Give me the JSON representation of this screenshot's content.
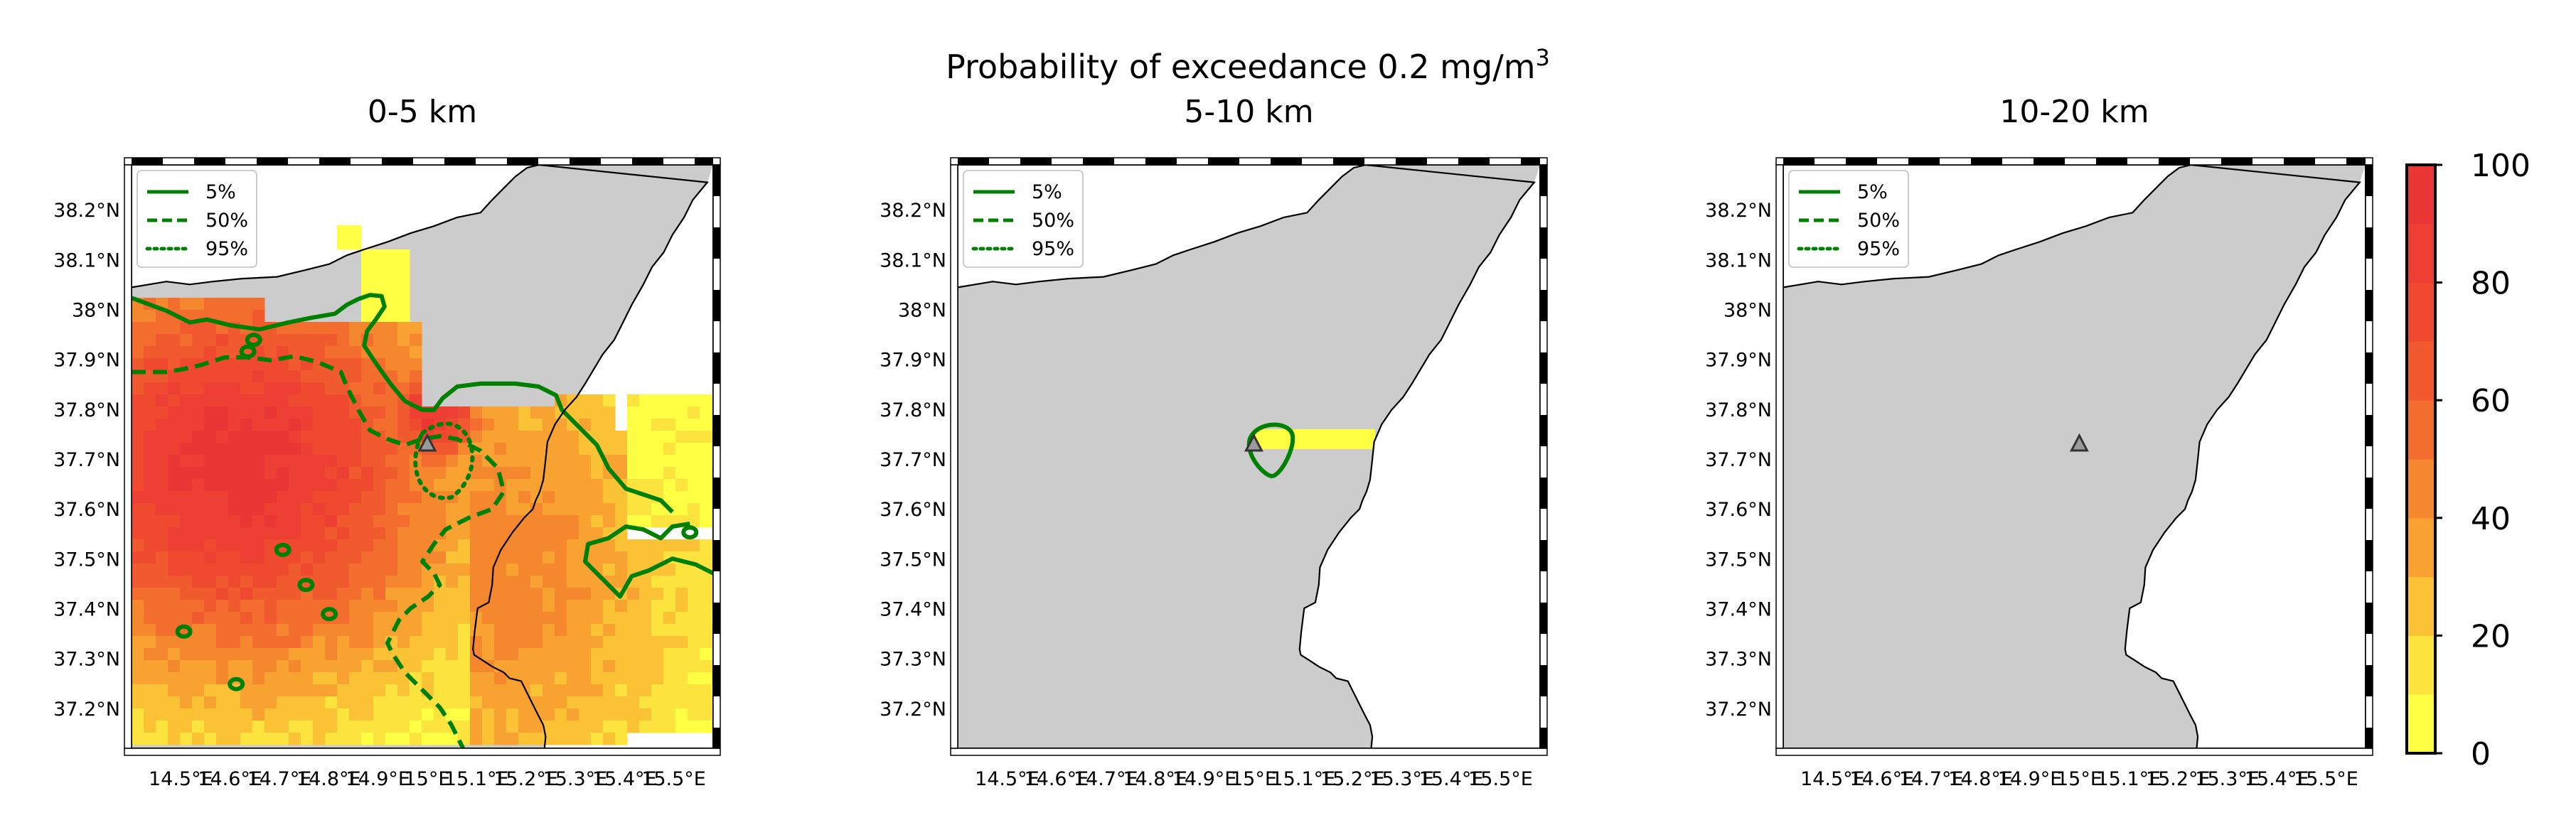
{
  "figure": {
    "suptitle_prefix": "Probability of exceedance 0.2 mg/m",
    "suptitle_sup": "3"
  },
  "colors": {
    "land": "#cccccc",
    "sea": "#ffffff",
    "contour": "#008000",
    "colormap": [
      "#ffff44",
      "#fde33d",
      "#fbc236",
      "#f8a232",
      "#f5882f",
      "#f36e2e",
      "#f1592f",
      "#ef4a30",
      "#ed3f33",
      "#eb3636"
    ]
  },
  "chart_data": [
    {
      "type": "heatmap",
      "title": "0-5 km",
      "xlim": [
        14.4,
        15.58
      ],
      "ylim": [
        37.12,
        38.29
      ],
      "xticks": [
        14.5,
        14.6,
        14.7,
        14.8,
        14.9,
        15.0,
        15.1,
        15.2,
        15.3,
        15.4,
        15.5
      ],
      "xtick_labels": [
        "14.5°E",
        "14.6°E",
        "14.7°E",
        "14.8°E",
        "14.9°E",
        "15°E",
        "15.1°E",
        "15.2°E",
        "15.3°E",
        "15.4°E",
        "15.5°E"
      ],
      "yticks": [
        37.2,
        37.3,
        37.4,
        37.5,
        37.6,
        37.7,
        37.8,
        37.9,
        38.0,
        38.1,
        38.2
      ],
      "ytick_labels": [
        "37.2°N",
        "37.3°N",
        "37.4°N",
        "37.5°N",
        "37.6°N",
        "37.7°N",
        "37.8°N",
        "37.9°N",
        "38°N",
        "38.1°N",
        "38.2°N"
      ],
      "vent": {
        "lon": 15.0,
        "lat": 37.73
      },
      "legend": {
        "position": "top-left",
        "entries": [
          "5%",
          "50%",
          "95%"
        ]
      },
      "probability_field_regions": [
        {
          "lon_range": [
            14.4,
            15.58
          ],
          "lat_range": [
            37.15,
            37.98
          ],
          "probability": "2-95"
        }
      ]
    },
    {
      "type": "heatmap",
      "title": "5-10 km",
      "xlim": [
        14.4,
        15.58
      ],
      "ylim": [
        37.12,
        38.29
      ],
      "xticks": [
        14.5,
        14.6,
        14.7,
        14.8,
        14.9,
        15.0,
        15.1,
        15.2,
        15.3,
        15.4,
        15.5
      ],
      "xtick_labels": [
        "14.5°E",
        "14.6°E",
        "14.7°E",
        "14.8°E",
        "14.9°E",
        "15°E",
        "15.1°E",
        "15.2°E",
        "15.3°E",
        "15.4°E",
        "15.5°E"
      ],
      "yticks": [
        37.2,
        37.3,
        37.4,
        37.5,
        37.6,
        37.7,
        37.8,
        37.9,
        38.0,
        38.1,
        38.2
      ],
      "ytick_labels": [
        "37.2°N",
        "37.3°N",
        "37.4°N",
        "37.5°N",
        "37.6°N",
        "37.7°N",
        "37.8°N",
        "37.9°N",
        "38°N",
        "38.1°N",
        "38.2°N"
      ],
      "vent": {
        "lon": 15.0,
        "lat": 37.73
      },
      "legend": {
        "position": "top-left",
        "entries": [
          "5%",
          "50%",
          "95%"
        ]
      },
      "probability_field_regions": [
        {
          "lon_range": [
            15.0,
            15.23
          ],
          "lat_range": [
            37.72,
            37.76
          ],
          "probability": "2-10"
        }
      ]
    },
    {
      "type": "heatmap",
      "title": "10-20 km",
      "xlim": [
        14.4,
        15.58
      ],
      "ylim": [
        37.12,
        38.29
      ],
      "xticks": [
        14.5,
        14.6,
        14.7,
        14.8,
        14.9,
        15.0,
        15.1,
        15.2,
        15.3,
        15.4,
        15.5
      ],
      "xtick_labels": [
        "14.5°E",
        "14.6°E",
        "14.7°E",
        "14.8°E",
        "14.9°E",
        "15°E",
        "15.1°E",
        "15.2°E",
        "15.3°E",
        "15.4°E",
        "15.5°E"
      ],
      "yticks": [
        37.2,
        37.3,
        37.4,
        37.5,
        37.6,
        37.7,
        37.8,
        37.9,
        38.0,
        38.1,
        38.2
      ],
      "ytick_labels": [
        "37.2°N",
        "37.3°N",
        "37.4°N",
        "37.5°N",
        "37.6°N",
        "37.7°N",
        "37.8°N",
        "37.9°N",
        "38°N",
        "38.1°N",
        "38.2°N"
      ],
      "vent": {
        "lon": 15.0,
        "lat": 37.73
      },
      "legend": {
        "position": "top-left",
        "entries": [
          "5%",
          "50%",
          "95%"
        ]
      },
      "probability_field_regions": []
    }
  ],
  "colorbar": {
    "range": [
      0,
      100
    ],
    "ticks": [
      0,
      20,
      40,
      60,
      80,
      100
    ],
    "tick_labels": [
      "0",
      "20",
      "40",
      "60",
      "80",
      "100"
    ]
  }
}
